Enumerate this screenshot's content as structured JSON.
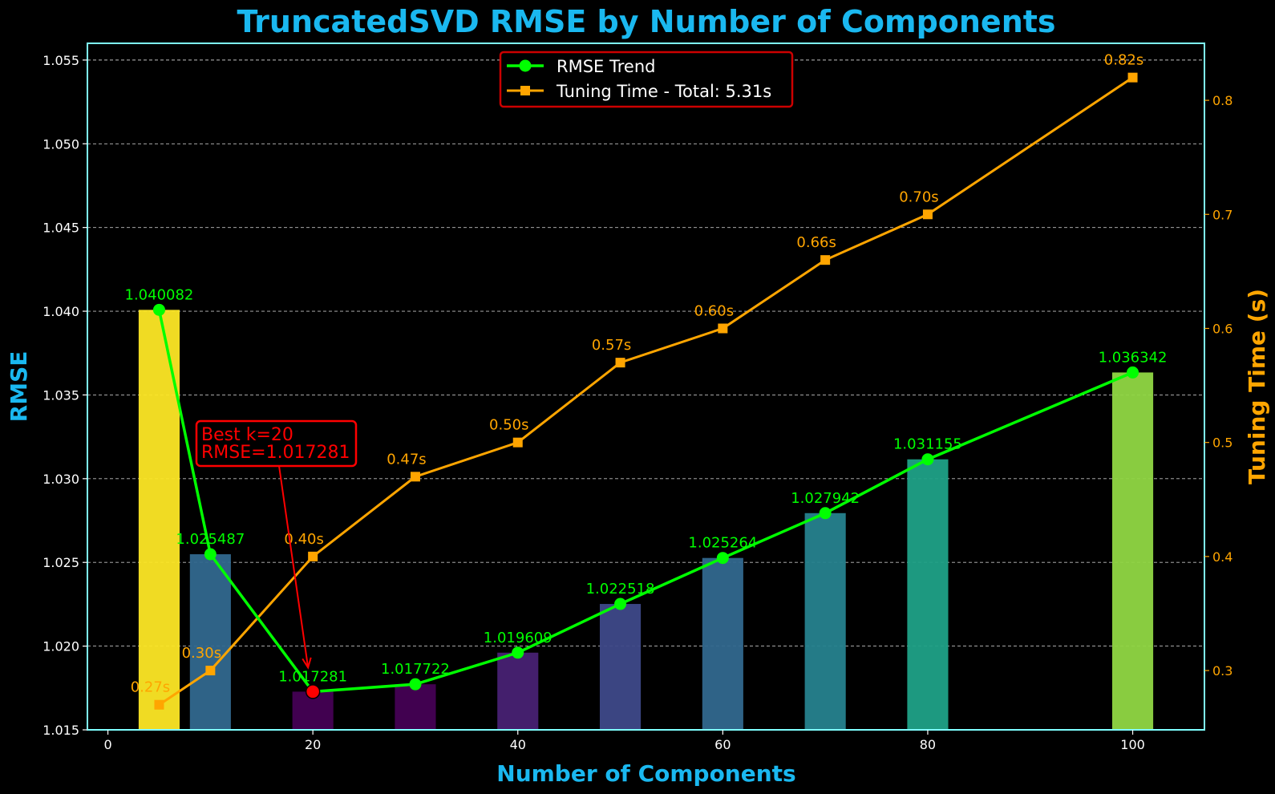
{
  "chart_data": {
    "type": "bar",
    "title": "TruncatedSVD RMSE by Number of Components",
    "xlabel": "Number of Components",
    "ylabel": "RMSE",
    "y2label": "Tuning Time (s)",
    "x": [
      5,
      10,
      20,
      30,
      40,
      50,
      60,
      70,
      80,
      100
    ],
    "xlim": [
      -2,
      107
    ],
    "ylim": [
      1.015,
      1.056
    ],
    "y2lim": [
      0.248,
      0.85
    ],
    "xticks": [
      "0",
      "20",
      "40",
      "60",
      "80",
      "100"
    ],
    "yticks": [
      "1.015",
      "1.020",
      "1.025",
      "1.030",
      "1.035",
      "1.040",
      "1.045",
      "1.050",
      "1.055"
    ],
    "y2ticks": [
      "0.3",
      "0.4",
      "0.5",
      "0.6",
      "0.7",
      "0.8"
    ],
    "grid": "y-dashed",
    "legend_position": "top-center",
    "series": [
      {
        "name": "RMSE Trend",
        "chart_type": "bar+line",
        "axis": "left",
        "color": "#00ff00",
        "values": [
          1.040082,
          1.025487,
          1.017281,
          1.017722,
          1.019609,
          1.022518,
          1.025264,
          1.027942,
          1.031155,
          1.036342
        ],
        "labels": [
          "1.040082",
          "1.025487",
          "1.017281",
          "1.017722",
          "1.019609",
          "1.022518",
          "1.025264",
          "1.027942",
          "1.031155",
          "1.036342"
        ]
      },
      {
        "name": "Tuning Time - Total: 5.31s",
        "chart_type": "line",
        "axis": "right",
        "color": "#ffa500",
        "values": [
          0.27,
          0.3,
          0.4,
          0.47,
          0.5,
          0.57,
          0.6,
          0.66,
          0.7,
          0.82
        ],
        "labels": [
          "0.27s",
          "0.30s",
          "0.40s",
          "0.47s",
          "0.50s",
          "0.57s",
          "0.60s",
          "0.66s",
          "0.70s",
          "0.82s"
        ]
      }
    ],
    "bar_colors": [
      "#fde725",
      "#31688e",
      "#440154",
      "#440154",
      "#482173",
      "#3e4989",
      "#31688e",
      "#26828e",
      "#1fa187",
      "#90d743"
    ],
    "best": {
      "x": 20,
      "value": 1.017281,
      "marker_color": "#ff0000"
    },
    "annotation": {
      "lines": [
        "Best k=20",
        "RMSE=1.017281"
      ],
      "color": "#ff0000"
    },
    "colors": {
      "background": "#000000",
      "frame": "#7fffff",
      "title": "#1ab8f0",
      "left_axis": "#ffffff",
      "right_axis": "#ffa500",
      "grid": "#ffffff",
      "legend_border": "#cc0000"
    }
  }
}
